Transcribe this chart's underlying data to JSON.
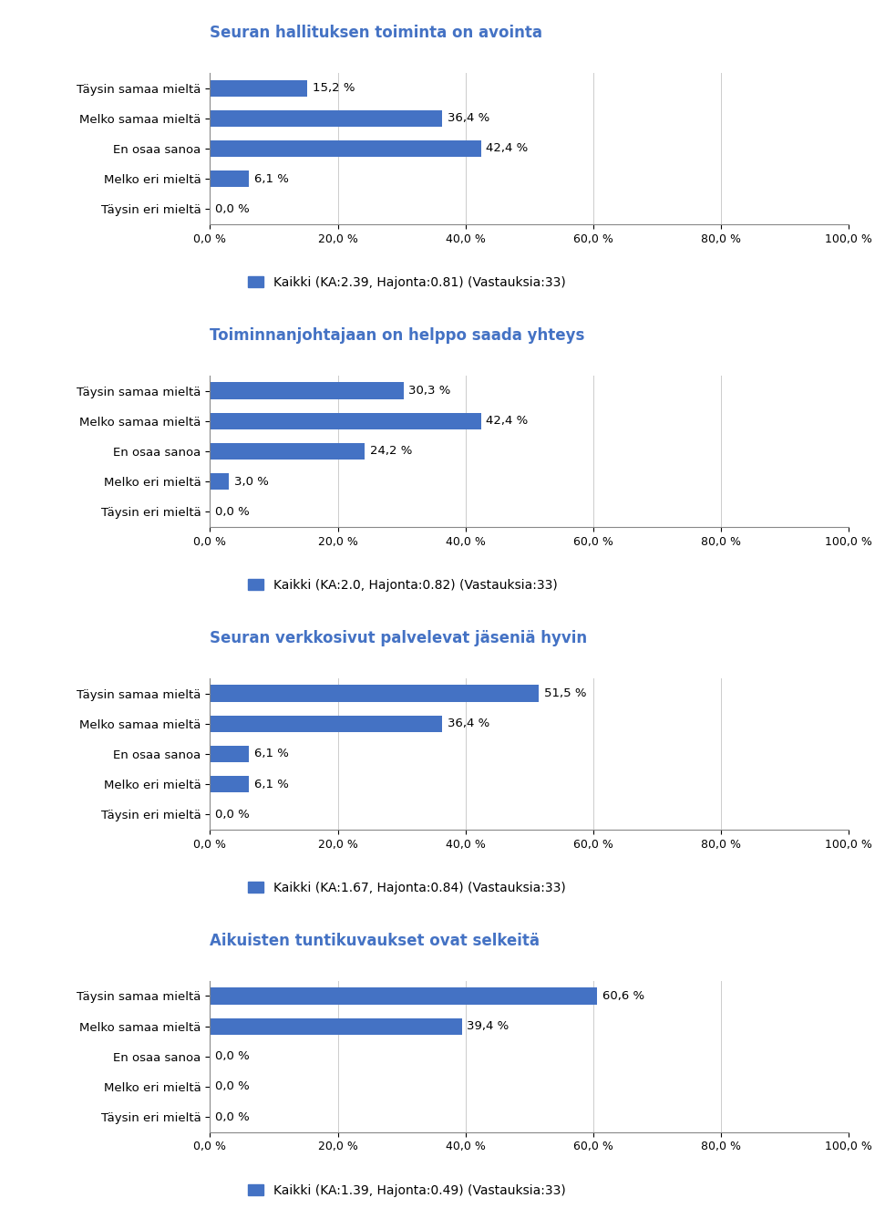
{
  "charts": [
    {
      "title": "Seuran hallituksen toiminta on avointa",
      "legend": "Kaikki (KA:2.39, Hajonta:0.81) (Vastauksia:33)",
      "categories": [
        "Täysin samaa mieltä",
        "Melko samaa mieltä",
        "En osaa sanoa",
        "Melko eri mieltä",
        "Täysin eri mieltä"
      ],
      "values": [
        15.2,
        36.4,
        42.4,
        6.1,
        0.0
      ],
      "labels": [
        "15,2 %",
        "36,4 %",
        "42,4 %",
        "6,1 %",
        "0,0 %"
      ]
    },
    {
      "title": "Toiminnanjohtajaan on helppo saada yhteys",
      "legend": "Kaikki (KA:2.0, Hajonta:0.82) (Vastauksia:33)",
      "categories": [
        "Täysin samaa mieltä",
        "Melko samaa mieltä",
        "En osaa sanoa",
        "Melko eri mieltä",
        "Täysin eri mieltä"
      ],
      "values": [
        30.3,
        42.4,
        24.2,
        3.0,
        0.0
      ],
      "labels": [
        "30,3 %",
        "42,4 %",
        "24,2 %",
        "3,0 %",
        "0,0 %"
      ]
    },
    {
      "title": "Seuran verkkosivut palvelevat jäseniä hyvin",
      "legend": "Kaikki (KA:1.67, Hajonta:0.84) (Vastauksia:33)",
      "categories": [
        "Täysin samaa mieltä",
        "Melko samaa mieltä",
        "En osaa sanoa",
        "Melko eri mieltä",
        "Täysin eri mieltä"
      ],
      "values": [
        51.5,
        36.4,
        6.1,
        6.1,
        0.0
      ],
      "labels": [
        "51,5 %",
        "36,4 %",
        "6,1 %",
        "6,1 %",
        "0,0 %"
      ]
    },
    {
      "title": "Aikuisten tuntikuvaukset ovat selkeitä",
      "legend": "Kaikki (KA:1.39, Hajonta:0.49) (Vastauksia:33)",
      "categories": [
        "Täysin samaa mieltä",
        "Melko samaa mieltä",
        "En osaa sanoa",
        "Melko eri mieltä",
        "Täysin eri mieltä"
      ],
      "values": [
        60.6,
        39.4,
        0.0,
        0.0,
        0.0
      ],
      "labels": [
        "60,6 %",
        "39,4 %",
        "0,0 %",
        "0,0 %",
        "0,0 %"
      ]
    }
  ],
  "bar_color": "#4472C4",
  "title_color": "#4472C4",
  "background_color": "#ffffff",
  "xlim": [
    0,
    100
  ],
  "xticks": [
    0,
    20,
    40,
    60,
    80,
    100
  ],
  "xtick_labels": [
    "0,0 %",
    "20,0 %",
    "40,0 %",
    "60,0 %",
    "80,0 %",
    "100,0 %"
  ],
  "title_fontsize": 12,
  "label_fontsize": 9.5,
  "tick_fontsize": 9,
  "legend_fontsize": 10
}
